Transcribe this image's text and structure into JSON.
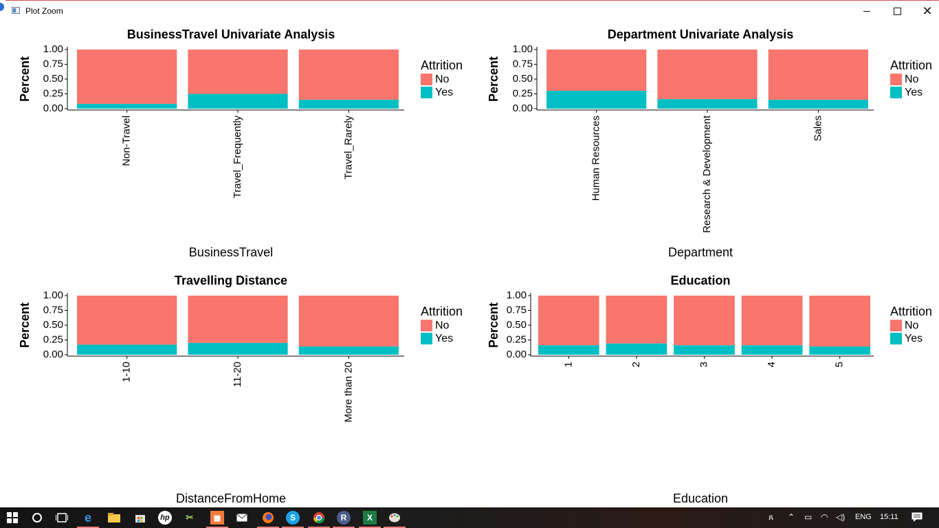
{
  "window": {
    "title": "Plot Zoom",
    "controls": {
      "minimize": "—",
      "maximize": "☐",
      "close": "✕"
    }
  },
  "colors": {
    "No": "#F8766D",
    "Yes": "#00BFC4"
  },
  "chart_data": [
    {
      "type": "bar",
      "stacked": "fill",
      "title": "BusinessTravel Univariate Analysis",
      "xlabel": "BusinessTravel",
      "ylabel": "Percent",
      "ylim": [
        0,
        1
      ],
      "yticks": [
        "0.00",
        "0.25",
        "0.50",
        "0.75",
        "1.00"
      ],
      "categories": [
        "Non-Travel",
        "Travel_Frequently",
        "Travel_Rarely"
      ],
      "legend_title": "Attrition",
      "legend_position": "right",
      "series": [
        {
          "name": "No",
          "values": [
            0.92,
            0.75,
            0.85
          ]
        },
        {
          "name": "Yes",
          "values": [
            0.08,
            0.25,
            0.15
          ]
        }
      ]
    },
    {
      "type": "bar",
      "stacked": "fill",
      "title": "Department Univariate Analysis",
      "xlabel": "Department",
      "ylabel": "Percent",
      "ylim": [
        0,
        1
      ],
      "yticks": [
        "0.00",
        "0.25",
        "0.50",
        "0.75",
        "1.00"
      ],
      "categories": [
        "Human Resources",
        "Research & Development",
        "Sales"
      ],
      "legend_title": "Attrition",
      "legend_position": "right",
      "series": [
        {
          "name": "No",
          "values": [
            0.7,
            0.84,
            0.85
          ]
        },
        {
          "name": "Yes",
          "values": [
            0.3,
            0.16,
            0.15
          ]
        }
      ]
    },
    {
      "type": "bar",
      "stacked": "fill",
      "title": "Travelling Distance",
      "xlabel": "DistanceFromHome",
      "ylabel": "Percent",
      "ylim": [
        0,
        1
      ],
      "yticks": [
        "0.00",
        "0.25",
        "0.50",
        "0.75",
        "1.00"
      ],
      "categories": [
        "1-10",
        "11-20",
        "More than 20"
      ],
      "legend_title": "Attrition",
      "legend_position": "right",
      "series": [
        {
          "name": "No",
          "values": [
            0.83,
            0.8,
            0.86
          ]
        },
        {
          "name": "Yes",
          "values": [
            0.17,
            0.2,
            0.14
          ]
        }
      ]
    },
    {
      "type": "bar",
      "stacked": "fill",
      "title": "Education",
      "xlabel": "Education",
      "ylabel": "Percent",
      "ylim": [
        0,
        1
      ],
      "yticks": [
        "0.00",
        "0.25",
        "0.50",
        "0.75",
        "1.00"
      ],
      "categories": [
        "1",
        "2",
        "3",
        "4",
        "5"
      ],
      "legend_title": "Attrition",
      "legend_position": "right",
      "series": [
        {
          "name": "No",
          "values": [
            0.84,
            0.81,
            0.84,
            0.84,
            0.86
          ]
        },
        {
          "name": "Yes",
          "values": [
            0.16,
            0.19,
            0.16,
            0.16,
            0.14
          ]
        }
      ]
    }
  ],
  "taskbar": {
    "icons": [
      "windows-start-icon",
      "cortana-circle-icon",
      "task-view-icon",
      "edge-browser-icon",
      "file-explorer-icon",
      "store-icon",
      "hp-icon",
      "tool-icon",
      "orange-app-icon",
      "mail-icon",
      "firefox-icon",
      "skype-icon",
      "chrome-icon",
      "r-icon",
      "excel-icon",
      "paint-icon"
    ],
    "language": "ENG",
    "clock": "15:11"
  }
}
